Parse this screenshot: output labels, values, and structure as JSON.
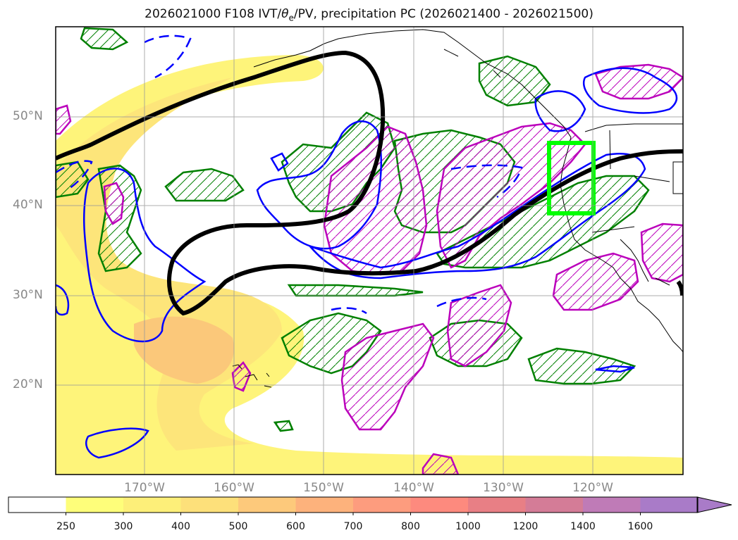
{
  "title": {
    "prefix": "2026021000 F108 IVT/",
    "theta": "θ",
    "theta_sub": "e",
    "suffix": "/PV, precipitation PC (2026021400 - 2026021500)"
  },
  "lat_labels": [
    "50°N",
    "40°N",
    "30°N",
    "20°N"
  ],
  "lon_labels": [
    "170°W",
    "160°W",
    "150°W",
    "140°W",
    "130°W",
    "120°W"
  ],
  "colorbar": {
    "ticks": [
      "250",
      "300",
      "400",
      "500",
      "600",
      "700",
      "800",
      "1000",
      "1200",
      "1400",
      "1600"
    ],
    "colors": [
      "#ffffff",
      "#fefe7a",
      "#fdef79",
      "#fde07a",
      "#fdc97b",
      "#fdb27c",
      "#fd9c7e",
      "#fd8a7e",
      "#e87f85",
      "#d47c97",
      "#bf7bb7",
      "#a97bc8"
    ]
  },
  "colors": {
    "ivt_fill": "#fde970",
    "ivt_core": "#fbc77a",
    "pv_contour": "#000000",
    "theta_contour": "#0000ff",
    "precip_contour": "#008000",
    "pc_contour": "#bb00bb",
    "target_box": "#00ff00"
  }
}
